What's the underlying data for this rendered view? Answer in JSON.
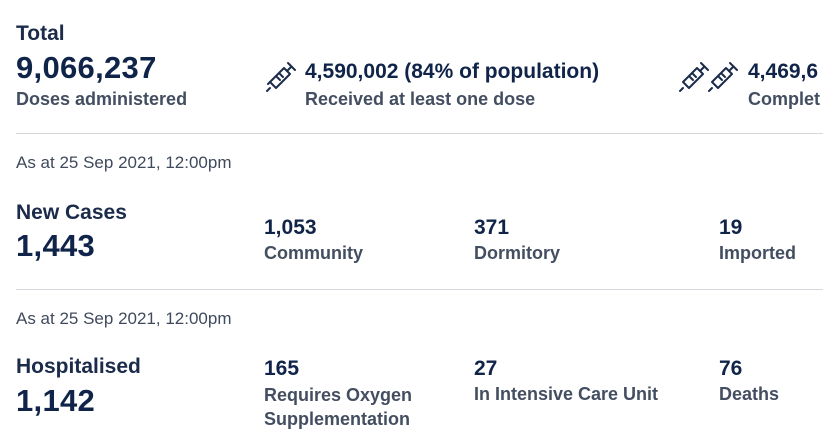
{
  "vaccination": {
    "total_label": "Total",
    "total_value": "9,066,237",
    "total_caption": "Doses administered",
    "one_dose_value": "4,590,002 (84% of population)",
    "one_dose_caption": "Received at least one dose",
    "full_value": "4,469,6",
    "full_caption": "Complet"
  },
  "cases": {
    "as_at": "As at 25 Sep 2021, 12:00pm",
    "title": "New Cases",
    "total": "1,443",
    "items": [
      {
        "value": "1,053",
        "label": "Community"
      },
      {
        "value": "371",
        "label": "Dormitory"
      },
      {
        "value": "19",
        "label": "Imported"
      }
    ]
  },
  "hospital": {
    "as_at": "As at 25 Sep 2021, 12:00pm",
    "title": "Hospitalised",
    "total": "1,142",
    "items": [
      {
        "value": "165",
        "label": "Requires Oxygen Supplementation"
      },
      {
        "value": "27",
        "label": "In Intensive Care Unit"
      },
      {
        "value": "76",
        "label": "Deaths"
      }
    ]
  },
  "icons": [
    "syringe-icon",
    "syringe-icon",
    "syringe-icon"
  ],
  "colors": {
    "heading": "#0f2448",
    "caption": "#434e60",
    "divider": "#d5d8dd"
  }
}
